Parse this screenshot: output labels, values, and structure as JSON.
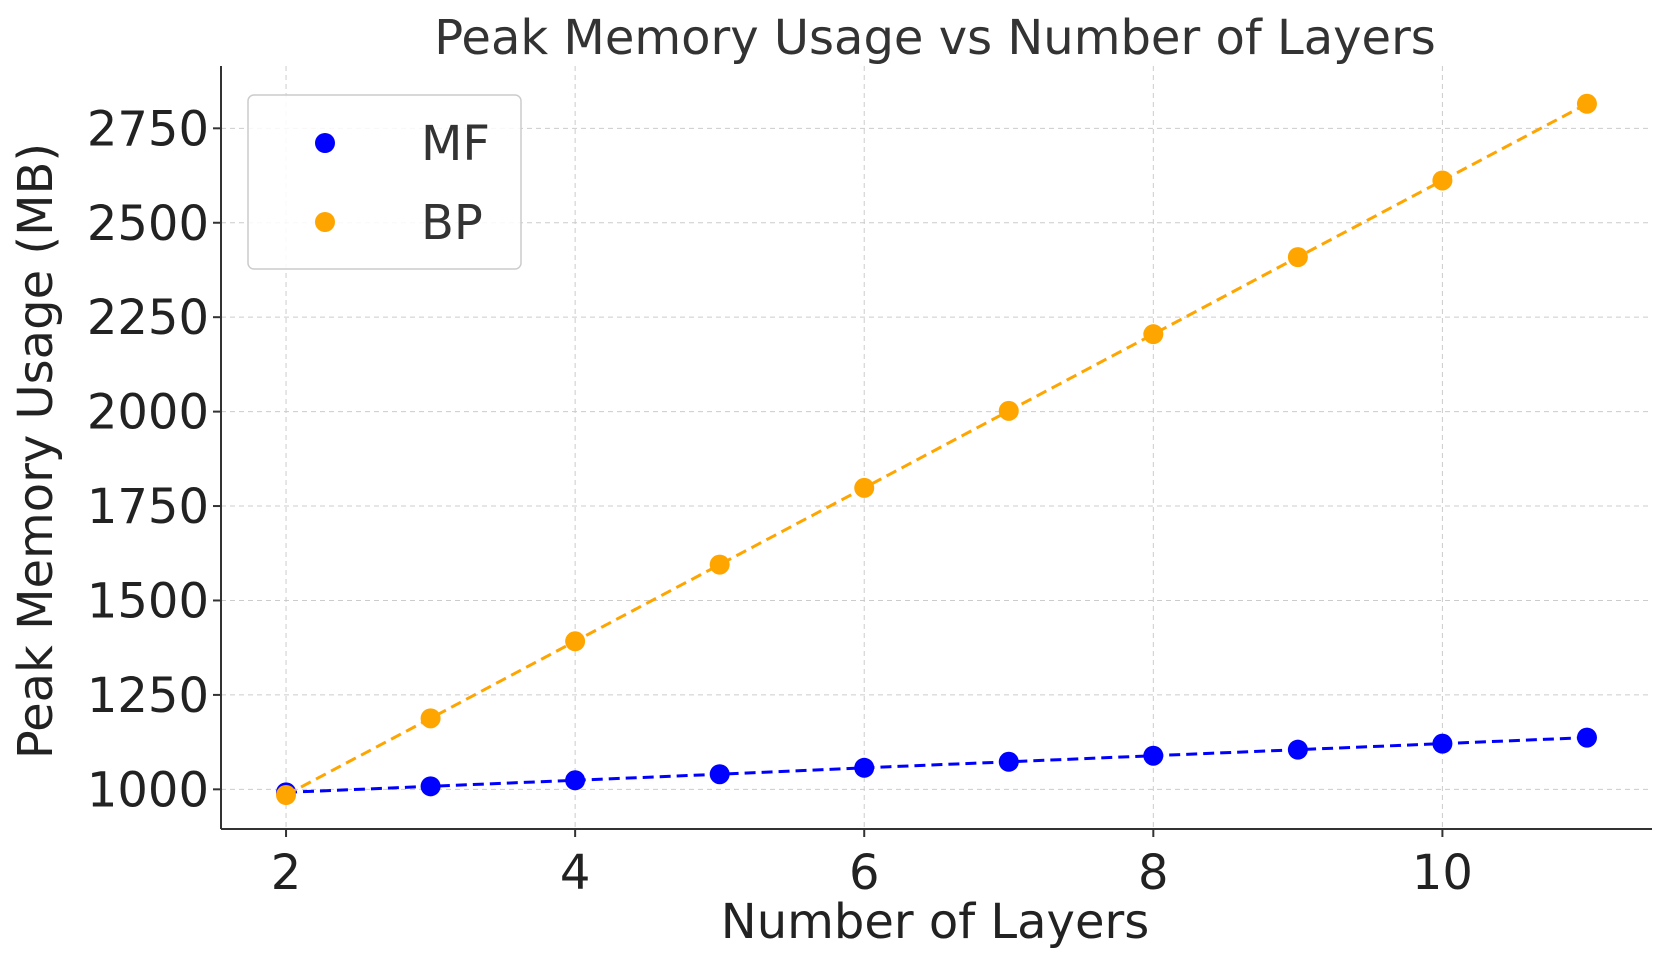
{
  "chart_data": {
    "type": "line",
    "title": "Peak Memory Usage vs Number of Layers",
    "xlabel": "Number of Layers",
    "ylabel": "Peak Memory Usage (MB)",
    "xlim": [
      1.55,
      11.45
    ],
    "ylim": [
      895,
      2915
    ],
    "xticks": [
      2,
      4,
      6,
      8,
      10
    ],
    "yticks": [
      1000,
      1250,
      1500,
      1750,
      2000,
      2250,
      2500,
      2750
    ],
    "grid": true,
    "legend_position": "top-left",
    "x": [
      2,
      3,
      4,
      5,
      6,
      7,
      8,
      9,
      10,
      11
    ],
    "series": [
      {
        "name": "MF",
        "color": "#0000ff",
        "linestyle": "dashed",
        "marker": "circle",
        "values": [
          992,
          1008,
          1024,
          1040,
          1057,
          1073,
          1089,
          1105,
          1121,
          1137
        ]
      },
      {
        "name": "BP",
        "color": "#ffa500",
        "linestyle": "dashed",
        "marker": "circle",
        "values": [
          985,
          1188,
          1392,
          1595,
          1798,
          2002,
          2205,
          2409,
          2612,
          2815
        ]
      }
    ]
  }
}
